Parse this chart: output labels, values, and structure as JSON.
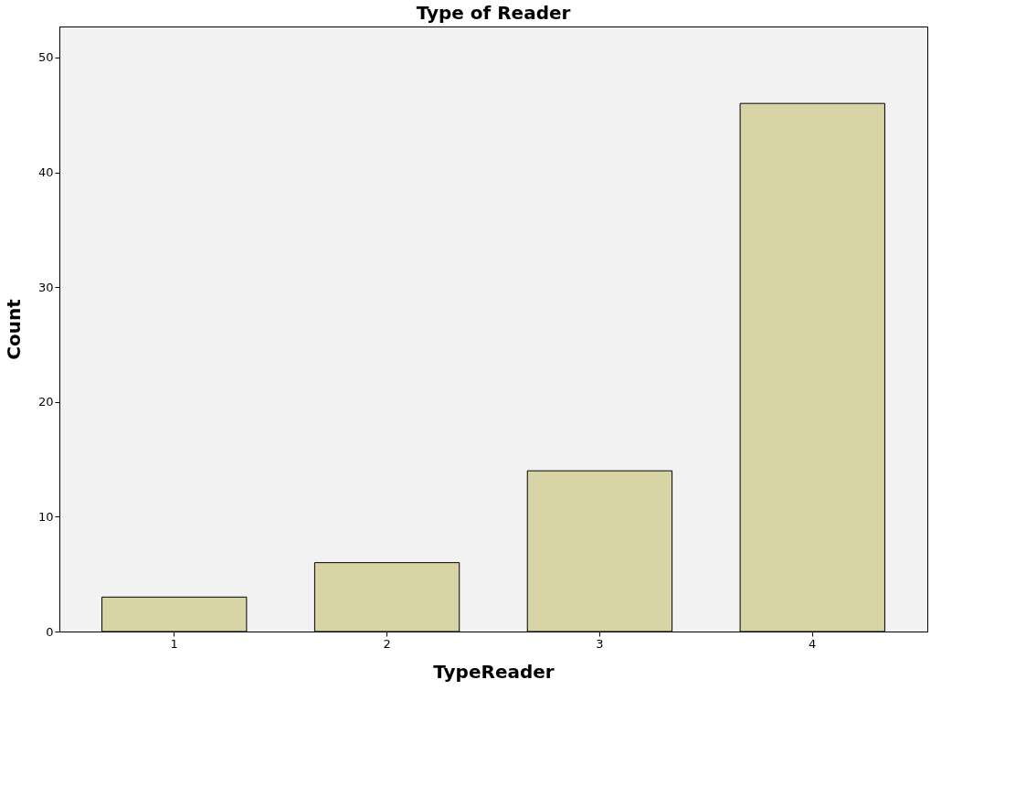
{
  "chart_data": {
    "type": "bar",
    "title": "Type of Reader",
    "xlabel": "TypeReader",
    "ylabel": "Count",
    "categories": [
      "1",
      "2",
      "3",
      "4"
    ],
    "values": [
      3,
      6,
      14,
      46
    ],
    "color": "#d9d4a5",
    "ylim": [
      0,
      52.7
    ],
    "yticks": [
      0,
      10,
      20,
      30,
      40,
      50
    ],
    "grid": false
  }
}
